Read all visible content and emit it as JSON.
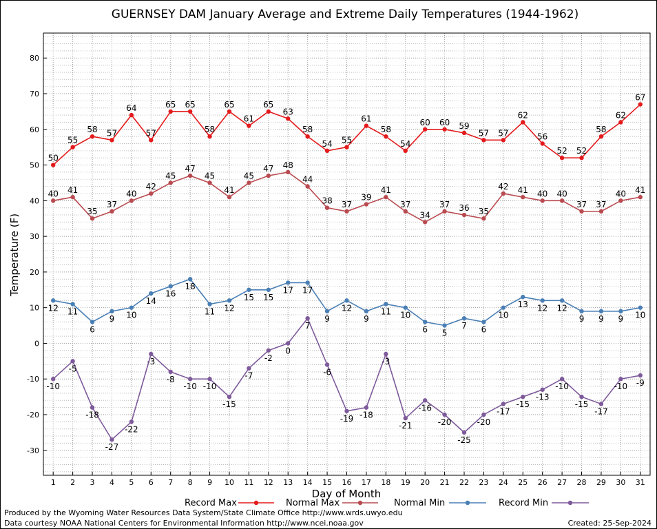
{
  "chart_data": {
    "type": "line",
    "title": "GUERNSEY DAM January Average and Extreme Daily Temperatures (1944-1962)",
    "xlabel": "Day of Month",
    "ylabel": "Temperature (F)",
    "x": [
      1,
      2,
      3,
      4,
      5,
      6,
      7,
      8,
      9,
      10,
      11,
      12,
      13,
      14,
      15,
      16,
      17,
      18,
      19,
      20,
      21,
      22,
      23,
      24,
      25,
      26,
      27,
      28,
      29,
      30,
      31
    ],
    "xlim": [
      0.5,
      31.5
    ],
    "ylim": [
      -37,
      87
    ],
    "yticks": [
      -30,
      -20,
      -10,
      0,
      10,
      20,
      30,
      40,
      50,
      60,
      70,
      80
    ],
    "grid": true,
    "legend_placement": "bottom",
    "series": [
      {
        "name": "Record Max",
        "color": "#e41a1c",
        "values": [
          50,
          55,
          58,
          57,
          64,
          57,
          65,
          65,
          58,
          65,
          61,
          65,
          63,
          58,
          54,
          55,
          61,
          58,
          54,
          60,
          60,
          59,
          57,
          57,
          62,
          56,
          52,
          52,
          58,
          62,
          67
        ]
      },
      {
        "name": "Normal Max",
        "color": "#b94a50",
        "values": [
          40,
          41,
          35,
          37,
          40,
          42,
          45,
          47,
          45,
          41,
          45,
          47,
          48,
          44,
          38,
          37,
          39,
          41,
          37,
          34,
          37,
          36,
          35,
          42,
          41,
          40,
          40,
          37,
          37,
          40,
          41
        ]
      },
      {
        "name": "Normal Min",
        "color": "#4a7fb5",
        "values": [
          12,
          11,
          6,
          9,
          10,
          14,
          16,
          18,
          11,
          12,
          15,
          15,
          17,
          17,
          9,
          12,
          9,
          11,
          10,
          6,
          5,
          7,
          6,
          10,
          13,
          12,
          12,
          9,
          9,
          9,
          10
        ]
      },
      {
        "name": "Record Min",
        "color": "#7e5a9b",
        "values": [
          -10,
          -5,
          -18,
          -27,
          -22,
          -3,
          -8,
          -10,
          -10,
          -15,
          -7,
          -2,
          0,
          7,
          -6,
          -19,
          -18,
          -3,
          -21,
          -16,
          -20,
          -25,
          -20,
          -17,
          -15,
          -13,
          -10,
          -15,
          -17,
          -10,
          -9
        ]
      }
    ]
  },
  "footer": {
    "produced_by": "Produced by the Wyoming Water Resources Data System/State Climate Office http://www.wrds.uwyo.edu",
    "data_courtesy": "Data courtesy NOAA National Centers for Environmental Information http://www.ncei.noaa.gov",
    "created": "Created:  25-Sep-2024"
  }
}
